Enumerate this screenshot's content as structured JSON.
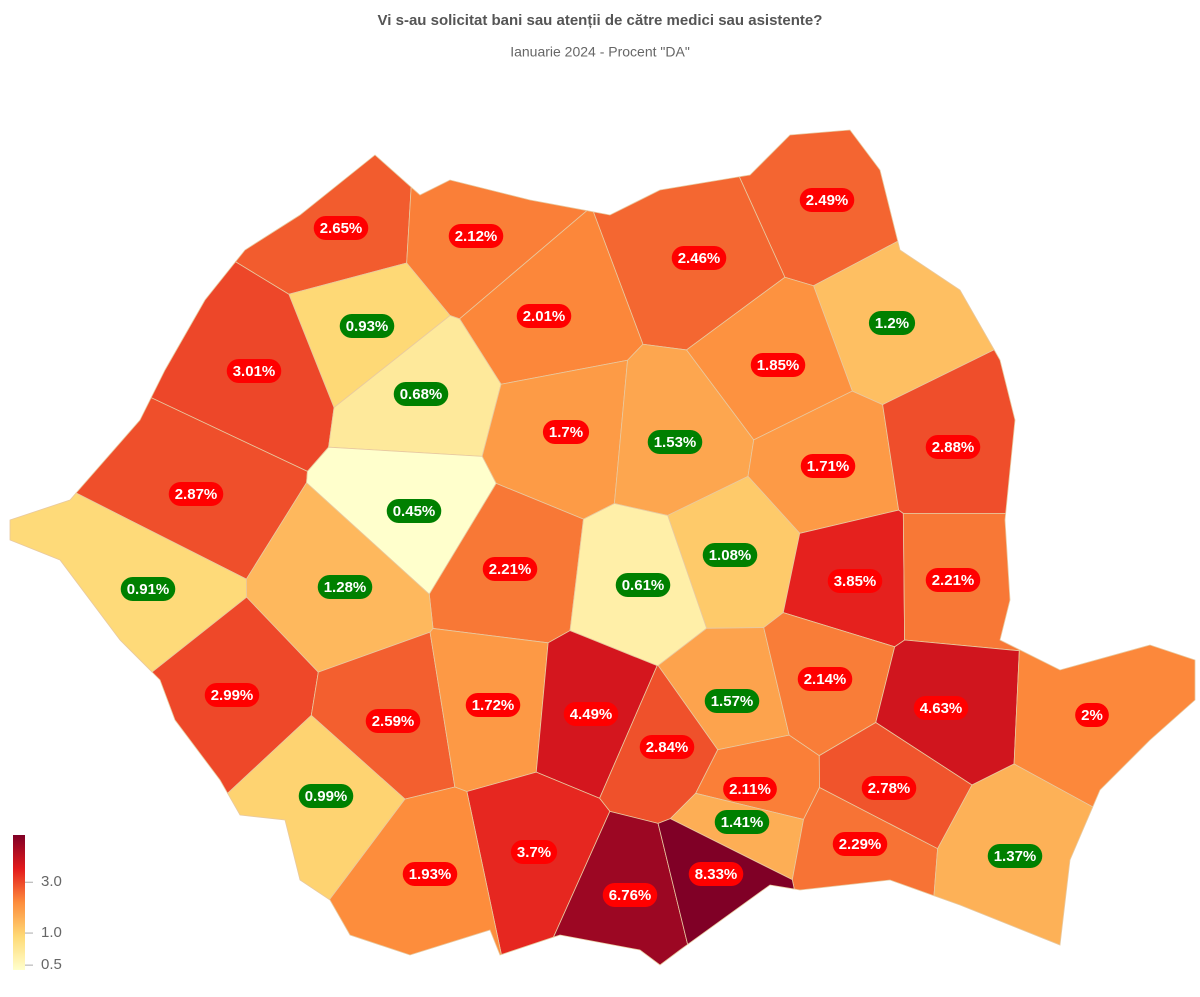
{
  "chart_data": {
    "type": "choropleth",
    "title": "Vi s-au solicitat bani sau atenții de către medici sau asistente?",
    "subtitle": "Ianuarie 2024 - Procent \"DA\"",
    "values": [
      2.65,
      2.12,
      2.49,
      2.46,
      0.93,
      2.01,
      1.2,
      3.01,
      0.68,
      1.85,
      1.7,
      1.53,
      1.71,
      2.88,
      2.87,
      0.45,
      1.08,
      2.21,
      0.61,
      3.85,
      2.21,
      0.91,
      1.28,
      2.99,
      2.59,
      1.72,
      4.49,
      1.57,
      2.14,
      4.63,
      2,
      2.84,
      2.11,
      2.78,
      0.99,
      1.41,
      2.29,
      1.37,
      3.7,
      1.93,
      6.76,
      8.33
    ],
    "value_labels": [
      "2.65%",
      "2.12%",
      "2.49%",
      "2.46%",
      "0.93%",
      "2.01%",
      "1.2%",
      "3.01%",
      "0.68%",
      "1.85%",
      "1.7%",
      "1.53%",
      "1.71%",
      "2.88%",
      "2.87%",
      "0.45%",
      "1.08%",
      "2.21%",
      "0.61%",
      "3.85%",
      "2.21%",
      "0.91%",
      "1.28%",
      "2.99%",
      "2.59%",
      "1.72%",
      "4.49%",
      "1.57%",
      "2.14%",
      "4.63%",
      "2%",
      "2.84%",
      "2.11%",
      "2.78%",
      "0.99%",
      "1.41%",
      "2.29%",
      "1.37%",
      "3.7%",
      "1.93%",
      "6.76%",
      "8.33%"
    ],
    "value_label_colors": [
      "#ff0000",
      "#ff0000",
      "#ff0000",
      "#ff0000",
      "#008000",
      "#ff0000",
      "#008000",
      "#ff0000",
      "#008000",
      "#ff0000",
      "#ff0000",
      "#008000",
      "#ff0000",
      "#ff0000",
      "#ff0000",
      "#008000",
      "#008000",
      "#ff0000",
      "#008000",
      "#ff0000",
      "#ff0000",
      "#008000",
      "#008000",
      "#ff0000",
      "#ff0000",
      "#ff0000",
      "#ff0000",
      "#008000",
      "#ff0000",
      "#ff0000",
      "#ff0000",
      "#ff0000",
      "#ff0000",
      "#ff0000",
      "#008000",
      "#008000",
      "#ff0000",
      "#008000",
      "#ff0000",
      "#ff0000",
      "#ff0000",
      "#ff0000"
    ],
    "colorscale": [
      "#ffffcc",
      "#fed976",
      "#fd8d3c",
      "#e31a1c",
      "#800026"
    ],
    "log_scale": true,
    "colorbar": {
      "range": [
        0.45,
        8.33
      ],
      "ticks": [
        0.5,
        {
          "value": 1,
          "label": "1.0"
        },
        {
          "value": 3,
          "label": "3.0"
        }
      ]
    }
  }
}
